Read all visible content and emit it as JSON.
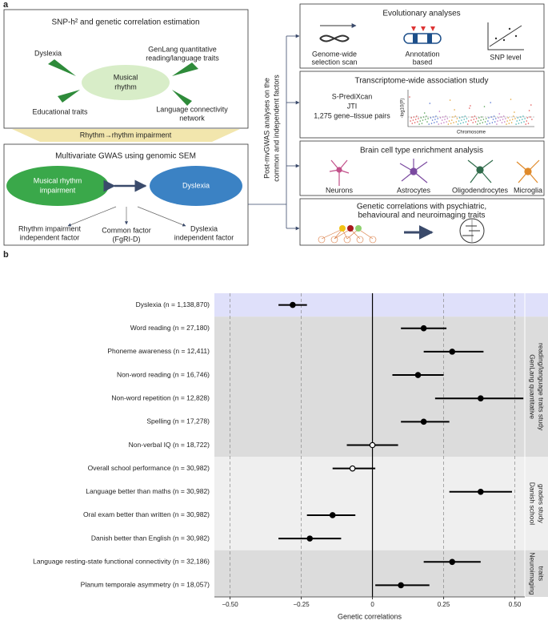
{
  "panel_a": {
    "label": "a",
    "snp": {
      "title": "SNP-h² and genetic correlation estimation",
      "center": [
        "Musical",
        "rhythm"
      ],
      "dyslexia": "Dyslexia",
      "genlang": [
        "GenLang quantitative",
        "reading/language traits"
      ],
      "educational": "Educational traits",
      "connectivity": [
        "Language connectivity",
        "network"
      ]
    },
    "band": "Rhythm→rhythm impairment",
    "sem": {
      "title": "Multivariate GWAS using genomic SEM",
      "left": [
        "Musical rhythm",
        "impairment"
      ],
      "right": "Dyslexia",
      "rhythm_factor": [
        "Rhythm impairment",
        "independent factor"
      ],
      "common": [
        "Common factor",
        "(FgRI-D)"
      ],
      "dyslexia_factor": [
        "Dyslexia",
        "independent factor"
      ]
    },
    "post": [
      "Post-mvGWAS analyses on the",
      "common and independent factors"
    ],
    "evo": {
      "title": "Evolutionary analyses",
      "scan": [
        "Genome-wide",
        "selection scan"
      ],
      "annotation": [
        "Annotation",
        "based"
      ],
      "snp": "SNP level"
    },
    "twas": {
      "title": "Transcriptome-wide association study",
      "methods": [
        "S-PrediXcan",
        "JTI",
        "1,275 gene–tissue pairs"
      ],
      "xlabel": "Chromosome",
      "ylabel": "-log10(P)"
    },
    "cells": {
      "title": "Brain cell type enrichment analysis",
      "names": [
        "Neurons",
        "Astrocytes",
        "Oligodendrocytes",
        "Microglia"
      ]
    },
    "gc": {
      "title": [
        "Genetic correlations with psychiatric,",
        "behavioural and neuroimaging traits"
      ]
    }
  },
  "chart_data": {
    "type": "forest",
    "label": "b",
    "categories": [
      "Dyslexia (n = 1,138,870)",
      "Word reading (n = 27,180)",
      "Phoneme awareness (n = 12,411)",
      "Non-word reading (n = 16,746)",
      "Non-word repetition (n = 12,828)",
      "Spelling (n = 17,278)",
      "Non-verbal IQ (n = 18,722)",
      "Overall school performance (n = 30,982)",
      "Language better than maths (n = 30,982)",
      "Oral exam better than written (n = 30,982)",
      "Danish better than English (n = 30,982)",
      "Language resting-state functional connectivity (n = 32,186)",
      "Planum temporale asymmetry (n = 18,057)"
    ],
    "values": [
      -0.28,
      0.18,
      0.28,
      0.16,
      0.38,
      0.18,
      0.0,
      -0.07,
      0.38,
      -0.14,
      -0.22,
      0.28,
      0.1
    ],
    "ci_low": [
      -0.33,
      0.1,
      0.18,
      0.07,
      0.22,
      0.1,
      -0.09,
      -0.14,
      0.27,
      -0.23,
      -0.33,
      0.18,
      0.01
    ],
    "ci_high": [
      -0.23,
      0.26,
      0.39,
      0.25,
      0.53,
      0.27,
      0.09,
      0.01,
      0.49,
      -0.06,
      -0.11,
      0.38,
      0.2
    ],
    "filled": [
      true,
      true,
      true,
      true,
      true,
      true,
      false,
      false,
      true,
      true,
      true,
      true,
      true
    ],
    "category_group": [
      0,
      1,
      1,
      1,
      1,
      1,
      1,
      2,
      2,
      2,
      2,
      3,
      3
    ],
    "groups": [
      {
        "color": "#dfe0fa"
      },
      {
        "label": [
          "GenLang quantitative",
          "reading/language traits study"
        ],
        "color": "#dcdcdc"
      },
      {
        "label": [
          "Danish school",
          "grades study"
        ],
        "color": "#efefef"
      },
      {
        "label": [
          "Neuroimaging",
          "traits"
        ],
        "color": "#dcdcdc"
      }
    ],
    "color": "#000000",
    "xlabel": "Genetic correlations",
    "xlim": [
      -0.555,
      0.535
    ],
    "xticks": [
      {
        "value": -0.5,
        "label": "−0.50"
      },
      {
        "value": -0.25,
        "label": "−0.25"
      },
      0,
      0.25,
      {
        "value": 0.5,
        "label": "0.50"
      }
    ],
    "grid": true
  }
}
